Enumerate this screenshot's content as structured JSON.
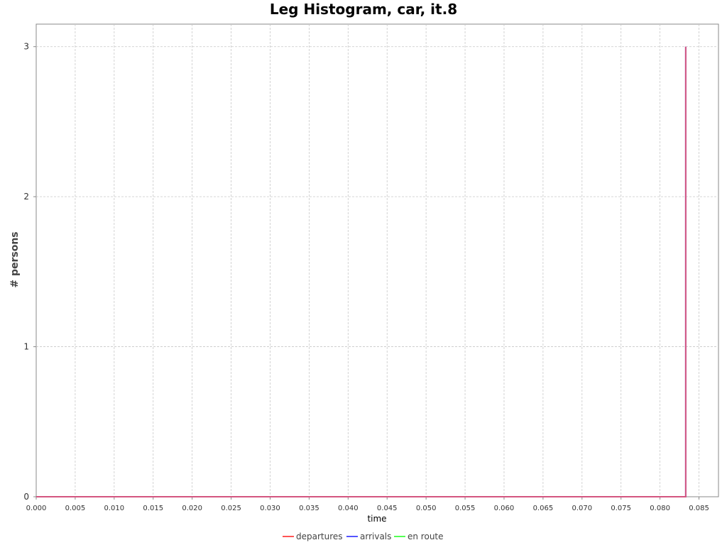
{
  "chart_data": {
    "type": "line",
    "title": "Leg Histogram, car, it.8",
    "xlabel": "time",
    "ylabel": "# persons",
    "xlim": [
      0.0,
      0.0875
    ],
    "ylim": [
      0,
      3.15
    ],
    "x_ticks": [
      0.0,
      0.005,
      0.01,
      0.015,
      0.02,
      0.025,
      0.03,
      0.035,
      0.04,
      0.045,
      0.05,
      0.055,
      0.06,
      0.065,
      0.07,
      0.075,
      0.08,
      0.085
    ],
    "x_tick_labels": [
      "0.000",
      "0.005",
      "0.010",
      "0.015",
      "0.020",
      "0.025",
      "0.030",
      "0.035",
      "0.040",
      "0.045",
      "0.050",
      "0.055",
      "0.060",
      "0.065",
      "0.070",
      "0.075",
      "0.080",
      "0.085"
    ],
    "y_ticks": [
      0,
      1,
      2,
      3
    ],
    "y_tick_labels": [
      "0",
      "1",
      "2",
      "3"
    ],
    "grid": true,
    "legend_position": "bottom",
    "series": [
      {
        "name": "departures",
        "color": "#ff5555",
        "x": [
          0.0,
          0.0833,
          0.0833,
          0.0833
        ],
        "y": [
          0,
          0,
          3,
          0
        ]
      },
      {
        "name": "arrivals",
        "color": "#5555ff",
        "x": [
          0.0,
          0.0833,
          0.0833,
          0.0833
        ],
        "y": [
          0,
          0,
          3,
          0
        ]
      },
      {
        "name": "en route",
        "color": "#55ff55",
        "x": [
          0.0,
          0.0833
        ],
        "y": [
          0,
          0
        ]
      }
    ]
  }
}
